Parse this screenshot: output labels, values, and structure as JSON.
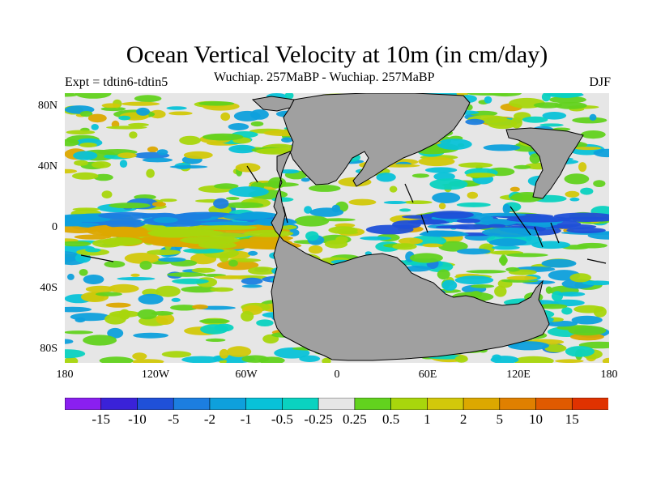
{
  "title": "Ocean Vertical Velocity at 10m (in cm/day)",
  "subtitle": "Wuchiap. 257MaBP - Wuchiap. 257MaBP",
  "experiment": "Expt = tdtin6-tdtin5",
  "season": "DJF",
  "map": {
    "lat_labels": [
      "80N",
      "40N",
      "0",
      "40S",
      "80S"
    ],
    "lon_labels": [
      "180",
      "120W",
      "60W",
      "0",
      "60E",
      "120E",
      "180"
    ],
    "land_color": "#a0a0a0",
    "coast_color": "#000000"
  },
  "colorbar": {
    "labels": [
      "-15",
      "-10",
      "-5",
      "-2",
      "-1",
      "-0.5",
      "-0.25",
      "0.25",
      "0.5",
      "1",
      "2",
      "5",
      "10",
      "15"
    ],
    "colors": [
      "#8a1ff0",
      "#3a22d8",
      "#1f50d8",
      "#1c7ee0",
      "#0ea0dc",
      "#08c2d8",
      "#0ad2c0",
      "#e6e6e6",
      "#62d21e",
      "#a8d60c",
      "#d2c80a",
      "#dca800",
      "#e08000",
      "#e05a00",
      "#e03200"
    ]
  }
}
